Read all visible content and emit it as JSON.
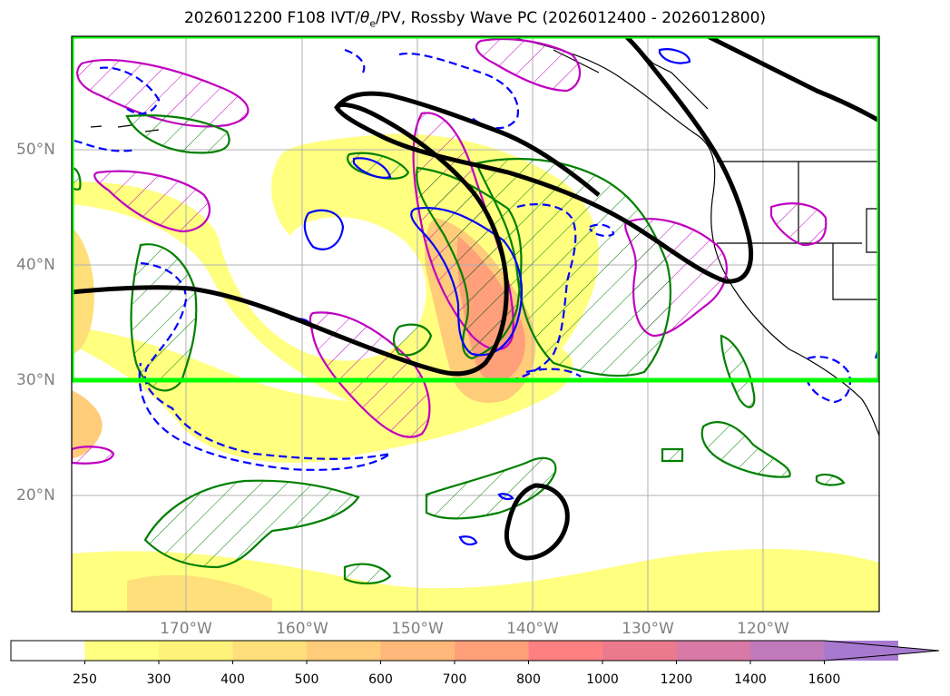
{
  "title": {
    "prefix": "2026012200 F108 IVT/",
    "theta": "θ",
    "theta_sub": "e",
    "suffix": "/PV, Rossby Wave PC (2026012400 - 2026012800)"
  },
  "map": {
    "lat_labels": [
      "50°N",
      "40°N",
      "30°N",
      "20°N"
    ],
    "lon_labels": [
      "170°W",
      "160°W",
      "150°W",
      "140°W",
      "130°W",
      "120°W"
    ],
    "region": {
      "name": "North Pacific / US West Coast"
    },
    "highlight_box": {
      "color": "#00ff00",
      "lat_range": [
        30,
        60
      ],
      "description": "green outlined region"
    }
  },
  "colorbar": {
    "labels": [
      "250",
      "300",
      "400",
      "500",
      "600",
      "700",
      "800",
      "1000",
      "1200",
      "1400",
      "1600"
    ],
    "colors": [
      "#ffff80",
      "#fff27a",
      "#ffdf7a",
      "#ffcc7a",
      "#ffb87a",
      "#ffa07a",
      "#ff8080",
      "#ec7a8f",
      "#d87aa5",
      "#c07abc",
      "#a77ad0"
    ],
    "extend": "max"
  },
  "legend_colors": {
    "pv_contour": "#000000",
    "magenta_hatch": "#c000c0",
    "green_hatch": "#008000",
    "blue_contour": "#0000ff"
  }
}
